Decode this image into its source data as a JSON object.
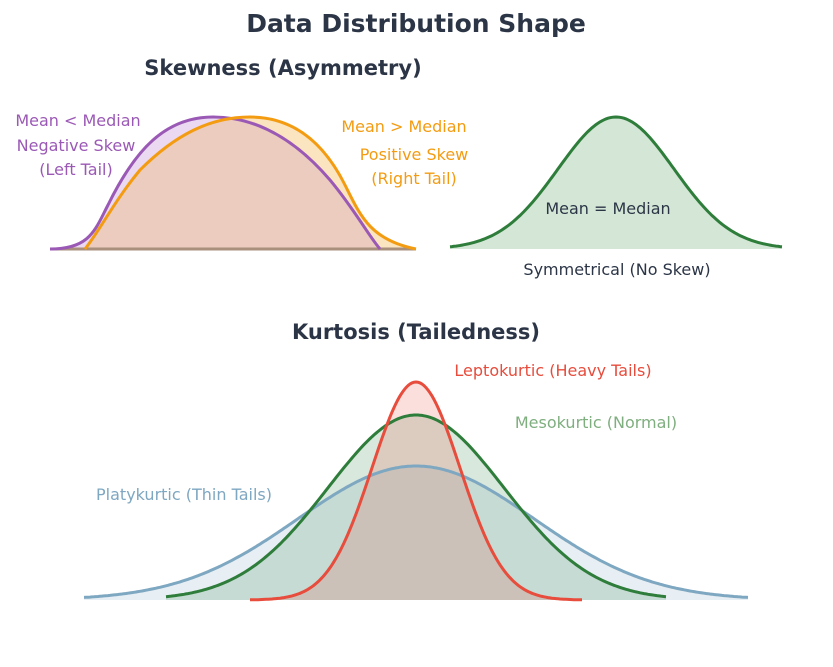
{
  "title": "Data Distribution Shape",
  "skewness": {
    "heading": "Skewness (Asymmetry)",
    "negative": {
      "line1": "Mean < Median",
      "line2": "Negative Skew",
      "line3": "(Left Tail)",
      "color": "#9b59b6",
      "fill": "#ead9f0"
    },
    "positive": {
      "line1": "Mean > Median",
      "line2": "Positive Skew",
      "line3": "(Right Tail)",
      "color": "#f39c12",
      "fill": "#fbe5c0"
    },
    "overlap_fill": "#ecccbe",
    "symmetric": {
      "center_label": "Mean = Median",
      "caption": "Symmetrical (No Skew)",
      "color": "#2e7d3b",
      "fill": "#d4e7d6"
    }
  },
  "kurtosis": {
    "heading": "Kurtosis (Tailedness)",
    "leptokurtic": {
      "label": "Leptokurtic (Heavy Tails)",
      "color": "#e74c3c"
    },
    "mesokurtic": {
      "label": "Mesokurtic (Normal)",
      "color": "#2e7d3b",
      "label_color": "#7fae7f"
    },
    "platykurtic": {
      "label": "Platykurtic (Thin Tails)",
      "color": "#7ea7c1"
    },
    "text_color": "#2b3546"
  }
}
